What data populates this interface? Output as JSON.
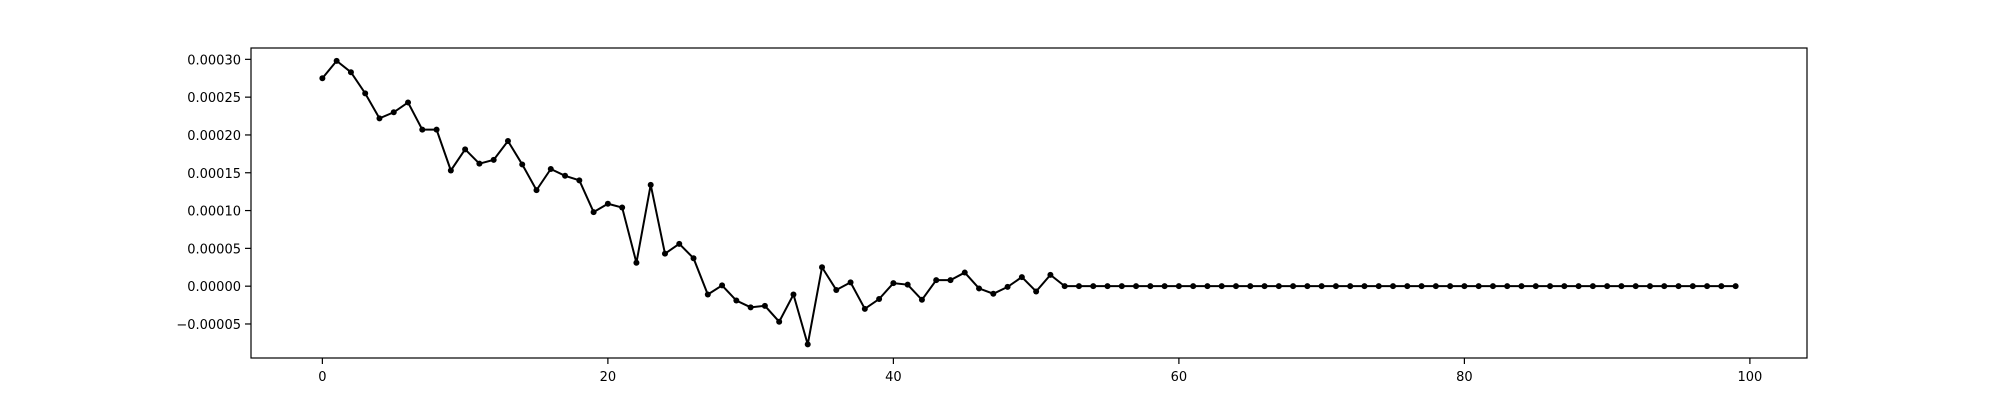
{
  "chart_data": {
    "type": "line",
    "title": "",
    "xlabel": "",
    "ylabel": "",
    "xlim": [
      -5,
      104
    ],
    "ylim": [
      -9.5e-05,
      0.000315
    ],
    "grid": false,
    "color": "#000000",
    "marker": "dot",
    "x_ticks": [
      0,
      20,
      40,
      60,
      80,
      100
    ],
    "x_tick_labels": [
      "0",
      "20",
      "40",
      "60",
      "80",
      "100"
    ],
    "y_ticks": [
      -5e-05,
      0,
      5e-05,
      0.0001,
      0.00015,
      0.0002,
      0.00025,
      0.0003
    ],
    "y_tick_labels": [
      "−0.00005",
      "0.00000",
      "0.00005",
      "0.00010",
      "0.00015",
      "0.00020",
      "0.00025",
      "0.00030"
    ],
    "series": [
      {
        "x": [
          0,
          1,
          2,
          3,
          4,
          5,
          6,
          7,
          8,
          9,
          10,
          11,
          12,
          13,
          14,
          15,
          16,
          17,
          18,
          19,
          20,
          21,
          22,
          23,
          24,
          25,
          26,
          27,
          28,
          29,
          30,
          31,
          32,
          33,
          34,
          35,
          36,
          37,
          38,
          39,
          40,
          41,
          42,
          43,
          44,
          45,
          46,
          47,
          48,
          49,
          50,
          51,
          52,
          53,
          54,
          55,
          56,
          57,
          58,
          59,
          60,
          61,
          62,
          63,
          64,
          65,
          66,
          67,
          68,
          69,
          70,
          71,
          72,
          73,
          74,
          75,
          76,
          77,
          78,
          79,
          80,
          81,
          82,
          83,
          84,
          85,
          86,
          87,
          88,
          89,
          90,
          91,
          92,
          93,
          94,
          95,
          96,
          97,
          98,
          99
        ],
        "y": [
          0.000275,
          0.000298,
          0.000283,
          0.000255,
          0.000222,
          0.00023,
          0.000243,
          0.000207,
          0.000207,
          0.000153,
          0.000181,
          0.000162,
          0.000167,
          0.000192,
          0.000161,
          0.000127,
          0.000155,
          0.000146,
          0.00014,
          9.8e-05,
          0.000109,
          0.000104,
          3.1e-05,
          0.000134,
          4.3e-05,
          5.6e-05,
          3.7e-05,
          -1.1e-05,
          1e-06,
          -1.9e-05,
          -2.8e-05,
          -2.6e-05,
          -4.7e-05,
          -1.1e-05,
          -7.7e-05,
          2.5e-05,
          -5e-06,
          5e-06,
          -3e-05,
          -1.7e-05,
          4e-06,
          2e-06,
          -1.8e-05,
          8e-06,
          8e-06,
          1.8e-05,
          -3e-06,
          -1e-05,
          -1e-06,
          1.2e-05,
          -7e-06,
          1.5e-05,
          0,
          0,
          0,
          0,
          0,
          0,
          0,
          0,
          0,
          0,
          0,
          0,
          0,
          0,
          0,
          0,
          0,
          0,
          0,
          0,
          0,
          0,
          0,
          0,
          0,
          0,
          0,
          0,
          0,
          0,
          0,
          0,
          0,
          0,
          0,
          0,
          0,
          0,
          0,
          0,
          0,
          0,
          0,
          0,
          0,
          0,
          0,
          0
        ]
      }
    ]
  }
}
